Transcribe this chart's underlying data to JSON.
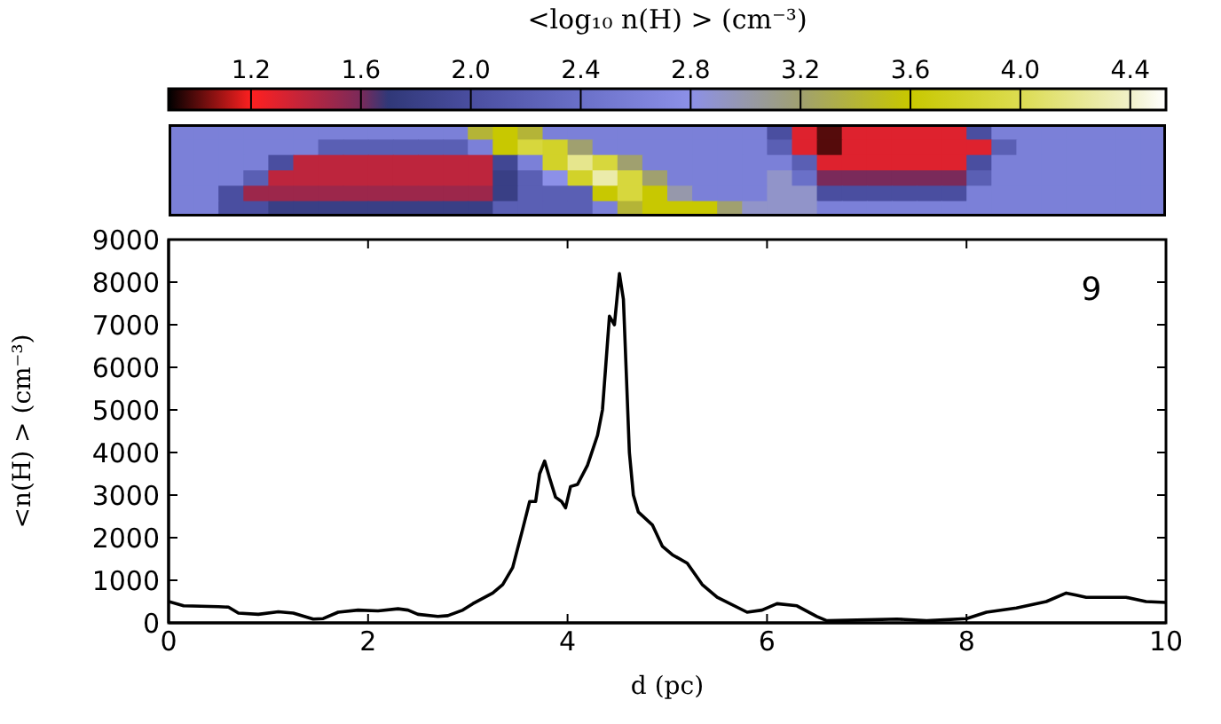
{
  "chart_data": [
    {
      "type": "heatmap",
      "clabel": "<log₁₀ n(H) > (cm⁻³)",
      "clim": [
        0.9,
        4.53
      ],
      "cticks": [
        {
          "value": 1.2,
          "label": "1.2"
        },
        {
          "value": 1.6,
          "label": "1.6"
        },
        {
          "value": 2.0,
          "label": "2.0"
        },
        {
          "value": 2.4,
          "label": "2.4"
        },
        {
          "value": 2.8,
          "label": "2.8"
        },
        {
          "value": 3.2,
          "label": "3.2"
        },
        {
          "value": 3.6,
          "label": "3.6"
        },
        {
          "value": 4.0,
          "label": "4.0"
        },
        {
          "value": 4.4,
          "label": "4.4"
        }
      ],
      "categories": [
        null,
        null,
        null,
        null,
        null,
        null,
        null,
        null,
        null,
        null,
        null,
        null,
        null,
        null,
        null,
        null,
        null,
        null,
        null,
        null,
        null,
        null,
        null,
        null,
        null,
        null,
        null,
        null,
        null,
        null,
        null,
        null,
        null,
        null,
        null,
        null,
        null,
        null,
        null,
        null
      ],
      "y_categories": [
        null,
        null,
        null,
        null,
        null,
        null
      ],
      "cells": [
        [
          2.6,
          2.6,
          2.6,
          2.6,
          2.6,
          2.6,
          2.6,
          2.6,
          2.6,
          2.6,
          2.6,
          2.6,
          3.4,
          3.6,
          3.4,
          2.6,
          2.6,
          2.6,
          2.6,
          2.6,
          2.6,
          2.6,
          2.6,
          2.6,
          2.0,
          1.3,
          1.0,
          1.3,
          1.3,
          1.3,
          1.3,
          1.3,
          2.0,
          2.6,
          2.6,
          2.6,
          2.6,
          2.6,
          2.6,
          2.6
        ],
        [
          2.6,
          2.6,
          2.6,
          2.6,
          2.6,
          2.6,
          2.2,
          2.2,
          2.2,
          2.2,
          2.2,
          2.2,
          2.6,
          3.6,
          3.9,
          3.8,
          3.2,
          2.6,
          2.6,
          2.6,
          2.6,
          2.6,
          2.6,
          2.6,
          2.2,
          1.3,
          1.0,
          1.3,
          1.3,
          1.3,
          1.3,
          1.3,
          1.3,
          2.2,
          2.6,
          2.6,
          2.6,
          2.6,
          2.6,
          2.6
        ],
        [
          2.6,
          2.6,
          2.6,
          2.6,
          2.0,
          1.4,
          1.4,
          1.4,
          1.4,
          1.4,
          1.4,
          1.4,
          1.4,
          1.9,
          2.6,
          3.8,
          4.2,
          3.9,
          3.2,
          2.6,
          2.6,
          2.6,
          2.6,
          2.6,
          2.6,
          2.2,
          1.3,
          1.3,
          1.3,
          1.3,
          1.3,
          1.3,
          2.0,
          2.6,
          2.6,
          2.6,
          2.6,
          2.6,
          2.6,
          2.6
        ],
        [
          2.6,
          2.6,
          2.6,
          2.2,
          1.4,
          1.4,
          1.4,
          1.4,
          1.4,
          1.4,
          1.4,
          1.4,
          1.4,
          1.8,
          2.2,
          2.8,
          3.8,
          4.3,
          3.9,
          3.2,
          2.6,
          2.6,
          2.6,
          2.6,
          2.9,
          2.4,
          1.6,
          1.6,
          1.6,
          1.6,
          1.6,
          1.6,
          2.2,
          2.6,
          2.6,
          2.6,
          2.6,
          2.6,
          2.6,
          2.6
        ],
        [
          2.6,
          2.6,
          2.0,
          1.5,
          1.5,
          1.5,
          1.5,
          1.5,
          1.5,
          1.5,
          1.5,
          1.5,
          1.5,
          1.8,
          2.2,
          2.2,
          2.2,
          3.6,
          3.9,
          3.6,
          3.0,
          2.6,
          2.6,
          2.6,
          2.9,
          2.9,
          2.0,
          2.0,
          2.0,
          2.0,
          2.0,
          2.0,
          2.6,
          2.6,
          2.6,
          2.6,
          2.6,
          2.6,
          2.6,
          2.6
        ],
        [
          2.6,
          2.6,
          2.0,
          2.0,
          1.8,
          1.8,
          1.8,
          1.8,
          1.8,
          1.8,
          1.8,
          1.8,
          1.8,
          2.2,
          2.2,
          2.2,
          2.2,
          2.6,
          3.4,
          3.6,
          3.6,
          3.6,
          3.2,
          2.9,
          2.9,
          2.9,
          2.6,
          2.6,
          2.6,
          2.6,
          2.6,
          2.6,
          2.6,
          2.6,
          2.6,
          2.6,
          2.6,
          2.6,
          2.6,
          2.6
        ]
      ]
    },
    {
      "type": "line",
      "xlabel": "d (pc)",
      "ylabel": "<n(H) > (cm⁻³)",
      "annotations": [
        "9"
      ],
      "xlim": [
        0,
        10
      ],
      "xticks": [
        0,
        2,
        4,
        6,
        8,
        10
      ],
      "ylim": [
        0,
        9000
      ],
      "yticks": [
        0,
        1000,
        2000,
        3000,
        4000,
        5000,
        6000,
        7000,
        8000,
        9000
      ],
      "grid": false,
      "marker": "none",
      "line_style": "solid",
      "series": [
        {
          "color": "#000000",
          "x": [
            0,
            0.15,
            0.5,
            0.6,
            0.7,
            0.9,
            1.1,
            1.25,
            1.45,
            1.55,
            1.7,
            1.9,
            2.1,
            2.3,
            2.4,
            2.5,
            2.7,
            2.8,
            2.95,
            3.05,
            3.25,
            3.35,
            3.45,
            3.55,
            3.62,
            3.68,
            3.72,
            3.77,
            3.82,
            3.88,
            3.94,
            3.98,
            4.03,
            4.1,
            4.2,
            4.3,
            4.35,
            4.42,
            4.47,
            4.52,
            4.56,
            4.62,
            4.66,
            4.71,
            4.85,
            4.95,
            5.05,
            5.2,
            5.35,
            5.5,
            5.8,
            5.95,
            6.1,
            6.3,
            6.5,
            6.6,
            7.0,
            7.3,
            7.6,
            8.0,
            8.2,
            8.5,
            8.8,
            9.0,
            9.1,
            9.2,
            9.6,
            9.8,
            10.0
          ],
          "values": [
            500,
            400,
            380,
            370,
            230,
            200,
            260,
            230,
            90,
            100,
            250,
            300,
            280,
            330,
            300,
            200,
            150,
            170,
            300,
            450,
            700,
            900,
            1300,
            2200,
            2850,
            2850,
            3500,
            3800,
            3400,
            2950,
            2850,
            2700,
            3200,
            3250,
            3700,
            4400,
            5000,
            7200,
            7000,
            8200,
            7600,
            4000,
            3000,
            2600,
            2300,
            1800,
            1600,
            1400,
            900,
            600,
            250,
            300,
            450,
            400,
            150,
            50,
            70,
            90,
            50,
            100,
            250,
            350,
            500,
            700,
            650,
            600,
            600,
            500,
            480
          ]
        }
      ]
    }
  ]
}
